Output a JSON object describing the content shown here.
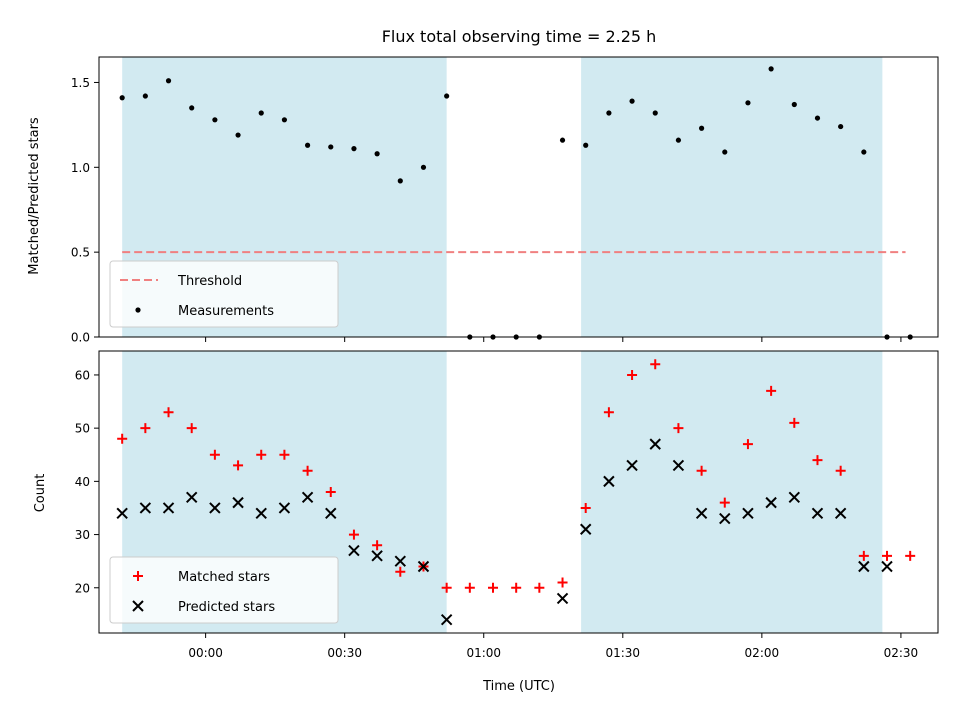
{
  "chart_data": [
    {
      "type": "scatter",
      "title": "Flux total observing time = 2.25 h",
      "xlabel": "",
      "ylabel": "Matched/Predicted stars",
      "x_scale": "time",
      "xlim": [
        "23:37",
        "02:38"
      ],
      "ylim": [
        0,
        1.65
      ],
      "yticks": [
        0.0,
        0.5,
        1.0,
        1.5
      ],
      "ytick_labels": [
        "0.0",
        "0.5",
        "1.0",
        "1.5"
      ],
      "shaded_spans": [
        [
          "23:42",
          "00:52"
        ],
        [
          "01:21",
          "02:26"
        ]
      ],
      "shade_color": "#add8e6",
      "legend_position": "lower left",
      "series": [
        {
          "name": "Threshold",
          "kind": "dashed-line",
          "color": "#f08080",
          "x": [
            "23:42",
            "02:31"
          ],
          "y": [
            0.5,
            0.5
          ]
        },
        {
          "name": "Measurements",
          "kind": "points",
          "color": "#000000",
          "x": [
            "23:42",
            "23:47",
            "23:52",
            "23:57",
            "00:02",
            "00:07",
            "00:12",
            "00:17",
            "00:22",
            "00:27",
            "00:32",
            "00:37",
            "00:42",
            "00:47",
            "00:52",
            "00:57",
            "01:02",
            "01:07",
            "01:12",
            "01:17",
            "01:22",
            "01:27",
            "01:32",
            "01:37",
            "01:42",
            "01:47",
            "01:52",
            "01:57",
            "02:02",
            "02:07",
            "02:12",
            "02:17",
            "02:22",
            "02:27",
            "02:32"
          ],
          "y": [
            1.41,
            1.42,
            1.51,
            1.35,
            1.28,
            1.19,
            1.32,
            1.28,
            1.13,
            1.12,
            1.11,
            1.08,
            0.92,
            1.0,
            1.42,
            0,
            0,
            0,
            0,
            1.16,
            1.13,
            1.32,
            1.39,
            1.32,
            1.16,
            1.23,
            1.09,
            1.38,
            1.58,
            1.37,
            1.29,
            1.24,
            1.09,
            0,
            0
          ]
        }
      ]
    },
    {
      "type": "scatter",
      "title": "",
      "xlabel": "Time (UTC)",
      "ylabel": "Count",
      "x_scale": "time",
      "xlim": [
        "23:37",
        "02:38"
      ],
      "ylim": [
        11.5,
        64.5
      ],
      "yticks": [
        20,
        30,
        40,
        50,
        60
      ],
      "ytick_labels": [
        "20",
        "30",
        "40",
        "50",
        "60"
      ],
      "xticks": [
        "00:00",
        "00:30",
        "01:00",
        "01:30",
        "02:00",
        "02:30"
      ],
      "xtick_labels": [
        "00:00",
        "00:30",
        "01:00",
        "01:30",
        "02:00",
        "02:30"
      ],
      "shaded_spans": [
        [
          "23:42",
          "00:52"
        ],
        [
          "01:21",
          "02:26"
        ]
      ],
      "shade_color": "#add8e6",
      "legend_position": "lower left",
      "series": [
        {
          "name": "Matched stars",
          "marker": "plus",
          "color": "#ff0000",
          "x": [
            "23:42",
            "23:47",
            "23:52",
            "23:57",
            "00:02",
            "00:07",
            "00:12",
            "00:17",
            "00:22",
            "00:27",
            "00:32",
            "00:37",
            "00:42",
            "00:47",
            "00:52",
            "00:57",
            "01:02",
            "01:07",
            "01:12",
            "01:17",
            "01:22",
            "01:27",
            "01:32",
            "01:37",
            "01:42",
            "01:47",
            "01:52",
            "01:57",
            "02:02",
            "02:07",
            "02:12",
            "02:17",
            "02:22",
            "02:27",
            "02:32"
          ],
          "y": [
            48,
            50,
            53,
            50,
            45,
            43,
            45,
            45,
            42,
            38,
            30,
            28,
            23,
            24,
            20,
            20,
            20,
            20,
            20,
            21,
            35,
            53,
            60,
            62,
            50,
            42,
            36,
            47,
            57,
            51,
            44,
            42,
            26,
            26,
            26
          ]
        },
        {
          "name": "Predicted stars",
          "marker": "x",
          "color": "#000000",
          "x": [
            "23:42",
            "23:47",
            "23:52",
            "23:57",
            "00:02",
            "00:07",
            "00:12",
            "00:17",
            "00:22",
            "00:27",
            "00:32",
            "00:37",
            "00:42",
            "00:47",
            "00:52",
            "01:17",
            "01:22",
            "01:27",
            "01:32",
            "01:37",
            "01:42",
            "01:47",
            "01:52",
            "01:57",
            "02:02",
            "02:07",
            "02:12",
            "02:17",
            "02:22",
            "02:27"
          ],
          "y": [
            34,
            35,
            35,
            37,
            35,
            36,
            34,
            35,
            37,
            34,
            27,
            26,
            25,
            24,
            14,
            18,
            31,
            40,
            43,
            47,
            43,
            34,
            33,
            34,
            36,
            37,
            34,
            34,
            24,
            24
          ]
        }
      ]
    }
  ]
}
